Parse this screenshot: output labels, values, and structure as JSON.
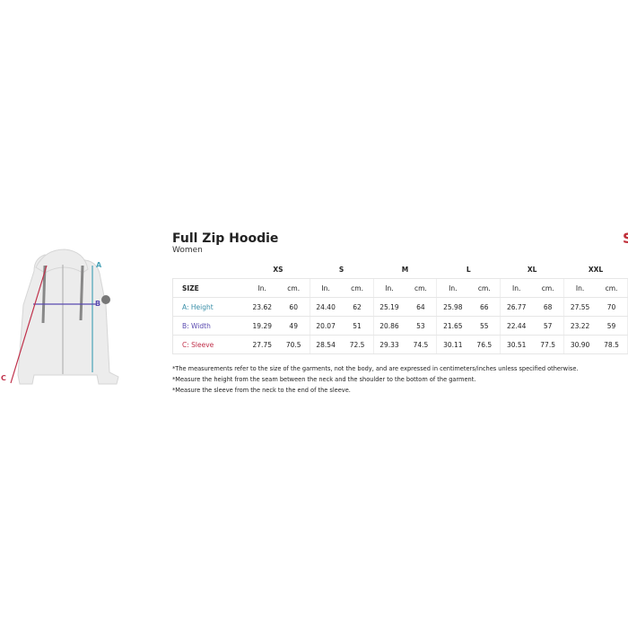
{
  "product": {
    "title": "Full Zip Hoodie",
    "subtitle": "Women"
  },
  "logo_text": "S",
  "diagram": {
    "labels": {
      "a": "A",
      "b": "B",
      "c": "C"
    },
    "colors": {
      "a": "#4aa3b8",
      "b": "#5a4ab0",
      "c": "#c0304a"
    }
  },
  "table": {
    "size_label": "SIZE",
    "sizes": [
      "XS",
      "S",
      "M",
      "L",
      "XL",
      "XXL"
    ],
    "unit_in": "In.",
    "unit_cm": "cm.",
    "rows": [
      {
        "label": "A: Height",
        "color": "#3a8fa8",
        "values": [
          [
            "23.62",
            "60"
          ],
          [
            "24.40",
            "62"
          ],
          [
            "25.19",
            "64"
          ],
          [
            "25.98",
            "66"
          ],
          [
            "26.77",
            "68"
          ],
          [
            "27.55",
            "70"
          ]
        ]
      },
      {
        "label": "B: Width",
        "color": "#5a4ab0",
        "values": [
          [
            "19.29",
            "49"
          ],
          [
            "20.07",
            "51"
          ],
          [
            "20.86",
            "53"
          ],
          [
            "21.65",
            "55"
          ],
          [
            "22.44",
            "57"
          ],
          [
            "23.22",
            "59"
          ]
        ]
      },
      {
        "label": "C: Sleeve",
        "color": "#c0304a",
        "values": [
          [
            "27.75",
            "70.5"
          ],
          [
            "28.54",
            "72.5"
          ],
          [
            "29.33",
            "74.5"
          ],
          [
            "30.11",
            "76.5"
          ],
          [
            "30.51",
            "77.5"
          ],
          [
            "30.90",
            "78.5"
          ]
        ]
      }
    ]
  },
  "notes": [
    "*The measurements refer to the size of the garments, not the body, and are expressed in centimeters/inches unless specified otherwise.",
    "*Measure the height from the seam between the neck and the shoulder to the bottom of the garment.",
    "*Measure the sleeve from the neck to the end of the sleeve."
  ]
}
